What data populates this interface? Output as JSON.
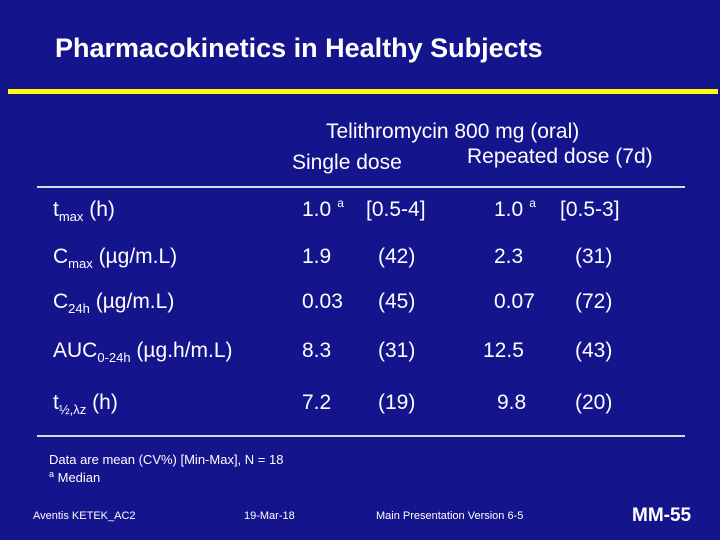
{
  "title": "Pharmacokinetics in Healthy Subjects",
  "header": {
    "drug": "Telithromycin 800 mg (oral)",
    "col_single": "Single dose",
    "col_repeated": "Repeated dose (7d)"
  },
  "rows": [
    {
      "param_main": "t",
      "param_sub": "max",
      "param_unit": " (h)",
      "single_value": "1.0",
      "single_marker": "a",
      "single_spread": "[0.5-4]",
      "rep_value": "1.0",
      "rep_marker": "a",
      "rep_spread": "[0.5-3]"
    },
    {
      "param_main": "C",
      "param_sub": "max",
      "param_unit": "  (µg/m.L)",
      "single_value": "1.9",
      "single_marker": "",
      "single_spread": "(42)",
      "rep_value": "2.3",
      "rep_marker": "",
      "rep_spread": "(31)"
    },
    {
      "param_main": "C",
      "param_sub": "24h",
      "param_unit": " (µg/m.L)",
      "single_value": "0.03",
      "single_marker": "",
      "single_spread": "(45)",
      "rep_value": "0.07",
      "rep_marker": "",
      "rep_spread": "(72)"
    },
    {
      "param_main": "AUC",
      "param_sub": "0-24h",
      "param_unit": " (µg.h/m.L)",
      "single_value": "8.3",
      "single_marker": "",
      "single_spread": "(31)",
      "rep_value": "12.5",
      "rep_marker": "",
      "rep_spread": "(43)"
    },
    {
      "param_main": "t",
      "param_sub": "½,λz",
      "param_unit": " (h)",
      "single_value": "7.2",
      "single_marker": "",
      "single_spread": "(19)",
      "rep_value": "9.8",
      "rep_marker": "",
      "rep_spread": "(20)"
    }
  ],
  "notes": {
    "line1": "Data are mean (CV%) [Min-Max], N = 18",
    "line2_marker": "a",
    "line2_text": " Median"
  },
  "footer": {
    "left": "Aventis KETEK_AC2",
    "date": "19-Mar-18",
    "version": "Main Presentation Version 6-5",
    "slide_number": "MM-55"
  },
  "colors": {
    "background": "#14148c",
    "title_rule": "#ffff00",
    "text": "#ffffff"
  }
}
